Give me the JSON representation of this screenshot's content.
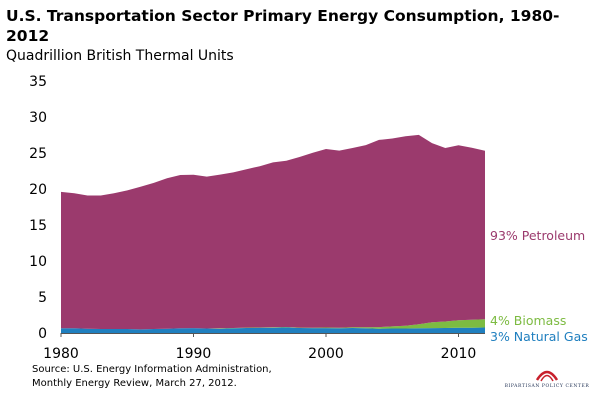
{
  "title": "U.S. Transportation Sector Primary Energy Consumption, 1980-2012",
  "subtitle": "Quadrillion  British Thermal Units",
  "source": [
    "Source: U.S. Energy Information Administration,",
    "Monthly Energy Review, March 27, 2012."
  ],
  "logo": {
    "text": "BIPARTISAN POLICY CENTER"
  },
  "colors": {
    "petroleum": "#9b3a6d",
    "biomass": "#7dbb42",
    "natural_gas": "#1f7fbf"
  },
  "chart_data": {
    "type": "area",
    "stacked": true,
    "x": [
      1980,
      1981,
      1982,
      1983,
      1984,
      1985,
      1986,
      1987,
      1988,
      1989,
      1990,
      1991,
      1992,
      1993,
      1994,
      1995,
      1996,
      1997,
      1998,
      1999,
      2000,
      2001,
      2002,
      2003,
      2004,
      2005,
      2006,
      2007,
      2008,
      2009,
      2010,
      2011,
      2012
    ],
    "series": [
      {
        "name": "3% Natural Gas",
        "values": [
          0.65,
          0.65,
          0.6,
          0.55,
          0.55,
          0.55,
          0.5,
          0.55,
          0.6,
          0.65,
          0.68,
          0.62,
          0.6,
          0.65,
          0.7,
          0.72,
          0.74,
          0.78,
          0.7,
          0.68,
          0.68,
          0.65,
          0.7,
          0.65,
          0.6,
          0.62,
          0.62,
          0.66,
          0.68,
          0.7,
          0.72,
          0.74,
          0.76
        ]
      },
      {
        "name": "4% Biomass",
        "values": [
          0.0,
          0.0,
          0.0,
          0.0,
          0.0,
          0.0,
          0.0,
          0.0,
          0.0,
          0.0,
          0.0,
          0.0,
          0.05,
          0.05,
          0.05,
          0.05,
          0.05,
          0.05,
          0.05,
          0.06,
          0.08,
          0.08,
          0.1,
          0.15,
          0.22,
          0.3,
          0.4,
          0.55,
          0.8,
          0.9,
          1.05,
          1.1,
          1.15
        ]
      },
      {
        "name": "93% Petroleum",
        "values": [
          18.95,
          18.75,
          18.5,
          18.55,
          18.85,
          19.25,
          19.8,
          20.3,
          20.9,
          21.3,
          21.3,
          21.1,
          21.35,
          21.6,
          22.0,
          22.4,
          22.9,
          23.1,
          23.7,
          24.3,
          24.8,
          24.6,
          24.9,
          25.3,
          26.0,
          26.1,
          26.3,
          26.3,
          24.9,
          24.1,
          24.3,
          23.9,
          23.4
        ]
      }
    ],
    "series_labels": [
      "93% Petroleum",
      "4% Biomass",
      "3% Natural Gas"
    ],
    "ylim": [
      0,
      35
    ],
    "xlim": [
      1980,
      2012
    ],
    "y_ticks": [
      "0",
      "5",
      "10",
      "15",
      "20",
      "25",
      "30",
      "35"
    ],
    "x_ticks": [
      "1980",
      "1990",
      "2000",
      "2010"
    ],
    "grid": false,
    "legend": "inline-right"
  }
}
